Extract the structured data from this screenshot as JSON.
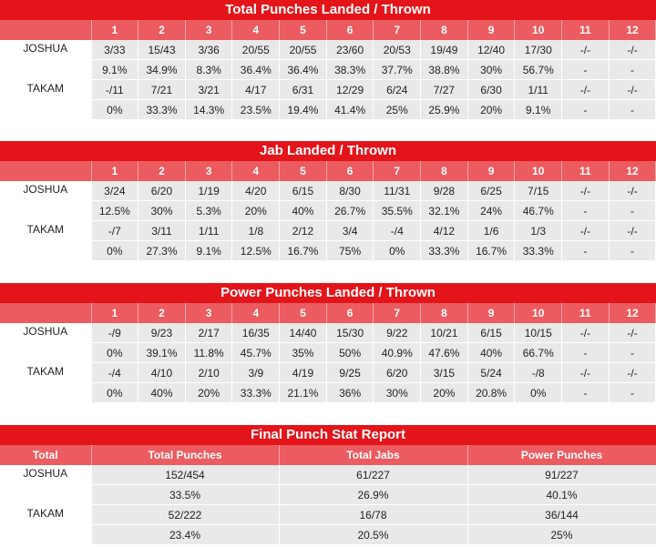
{
  "sections": [
    {
      "title": "Total Punches Landed / Thrown",
      "rounds": [
        "1",
        "2",
        "3",
        "4",
        "5",
        "6",
        "7",
        "8",
        "9",
        "10",
        "11",
        "12"
      ],
      "fighters": [
        {
          "name": "JOSHUA",
          "landed": [
            "3/33",
            "15/43",
            "3/36",
            "20/55",
            "20/55",
            "23/60",
            "20/53",
            "19/49",
            "12/40",
            "17/30",
            "-/-",
            "-/-"
          ],
          "pct": [
            "9.1%",
            "34.9%",
            "8.3%",
            "36.4%",
            "36.4%",
            "38.3%",
            "37.7%",
            "38.8%",
            "30%",
            "56.7%",
            "-",
            "-"
          ]
        },
        {
          "name": "TAKAM",
          "landed": [
            "-/11",
            "7/21",
            "3/21",
            "4/17",
            "6/31",
            "12/29",
            "6/24",
            "7/27",
            "6/30",
            "1/11",
            "-/-",
            "-/-"
          ],
          "pct": [
            "0%",
            "33.3%",
            "14.3%",
            "23.5%",
            "19.4%",
            "41.4%",
            "25%",
            "25.9%",
            "20%",
            "9.1%",
            "-",
            "-"
          ]
        }
      ]
    },
    {
      "title": "Jab Landed / Thrown",
      "rounds": [
        "1",
        "2",
        "3",
        "4",
        "5",
        "6",
        "7",
        "8",
        "9",
        "10",
        "11",
        "12"
      ],
      "fighters": [
        {
          "name": "JOSHUA",
          "landed": [
            "3/24",
            "6/20",
            "1/19",
            "4/20",
            "6/15",
            "8/30",
            "11/31",
            "9/28",
            "6/25",
            "7/15",
            "-/-",
            "-/-"
          ],
          "pct": [
            "12.5%",
            "30%",
            "5.3%",
            "20%",
            "40%",
            "26.7%",
            "35.5%",
            "32.1%",
            "24%",
            "46.7%",
            "-",
            "-"
          ]
        },
        {
          "name": "TAKAM",
          "landed": [
            "-/7",
            "3/11",
            "1/11",
            "1/8",
            "2/12",
            "3/4",
            "-/4",
            "4/12",
            "1/6",
            "1/3",
            "-/-",
            "-/-"
          ],
          "pct": [
            "0%",
            "27.3%",
            "9.1%",
            "12.5%",
            "16.7%",
            "75%",
            "0%",
            "33.3%",
            "16.7%",
            "33.3%",
            "-",
            "-"
          ]
        }
      ]
    },
    {
      "title": "Power Punches Landed / Thrown",
      "rounds": [
        "1",
        "2",
        "3",
        "4",
        "5",
        "6",
        "7",
        "8",
        "9",
        "10",
        "11",
        "12"
      ],
      "fighters": [
        {
          "name": "JOSHUA",
          "landed": [
            "-/9",
            "9/23",
            "2/17",
            "16/35",
            "14/40",
            "15/30",
            "9/22",
            "10/21",
            "6/15",
            "10/15",
            "-/-",
            "-/-"
          ],
          "pct": [
            "0%",
            "39.1%",
            "11.8%",
            "45.7%",
            "35%",
            "50%",
            "40.9%",
            "47.6%",
            "40%",
            "66.7%",
            "-",
            "-"
          ]
        },
        {
          "name": "TAKAM",
          "landed": [
            "-/4",
            "4/10",
            "2/10",
            "3/9",
            "4/19",
            "9/25",
            "6/20",
            "3/15",
            "5/24",
            "-/8",
            "-/-",
            "-/-"
          ],
          "pct": [
            "0%",
            "40%",
            "20%",
            "33.3%",
            "21.1%",
            "36%",
            "30%",
            "20%",
            "20.8%",
            "0%",
            "-",
            "-"
          ]
        }
      ]
    }
  ],
  "final": {
    "title": "Final Punch Stat Report",
    "headers": [
      "Total",
      "Total Punches",
      "Total Jabs",
      "Power Punches"
    ],
    "fighters": [
      {
        "name": "JOSHUA",
        "landed": [
          "152/454",
          "61/227",
          "91/227"
        ],
        "pct": [
          "33.5%",
          "26.9%",
          "40.1%"
        ]
      },
      {
        "name": "TAKAM",
        "landed": [
          "52/222",
          "16/78",
          "36/144"
        ],
        "pct": [
          "23.4%",
          "20.5%",
          "25%"
        ]
      }
    ]
  }
}
